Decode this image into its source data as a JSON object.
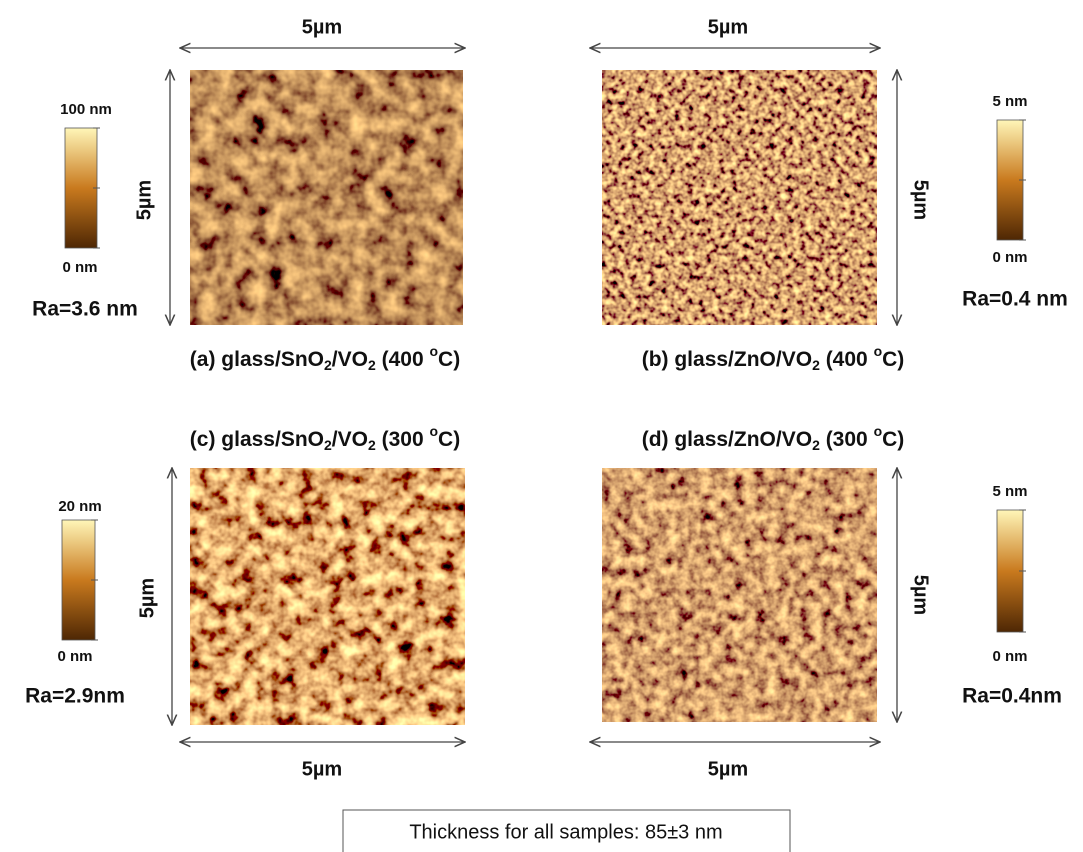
{
  "panels": [
    {
      "caption": [
        "(a) glass/SnO",
        "2",
        "/VO",
        "2",
        " (400 ",
        "o",
        "C)"
      ],
      "scale_horizontal": "5µm",
      "scale_vertical": "5µm",
      "colorbar": {
        "max": "100 nm",
        "min": "0 nm"
      },
      "roughness": "Ra=3.6 nm"
    },
    {
      "caption": [
        "(b) glass/ZnO/VO",
        "2",
        " (400 ",
        "o",
        "C)"
      ],
      "scale_horizontal": "5µm",
      "scale_vertical": "5µm",
      "colorbar": {
        "max": "5 nm",
        "min": "0 nm"
      },
      "roughness": "Ra=0.4 nm"
    },
    {
      "caption": [
        "(c) glass/SnO",
        "2",
        "/VO",
        "2",
        " (300 ",
        "o",
        "C)"
      ],
      "scale_horizontal": "5µm",
      "scale_vertical": "5µm",
      "colorbar": {
        "max": "20 nm",
        "min": "0 nm"
      },
      "roughness": "Ra=2.9nm"
    },
    {
      "caption": [
        "(d) glass/ZnO/VO",
        "2",
        " (300 ",
        "o",
        "C)"
      ],
      "scale_horizontal": "5µm",
      "scale_vertical": "5µm",
      "colorbar": {
        "max": "5 nm",
        "min": "0 nm"
      },
      "roughness": "Ra=0.4nm"
    }
  ],
  "footer": "Thickness for all samples: 85±3 nm"
}
